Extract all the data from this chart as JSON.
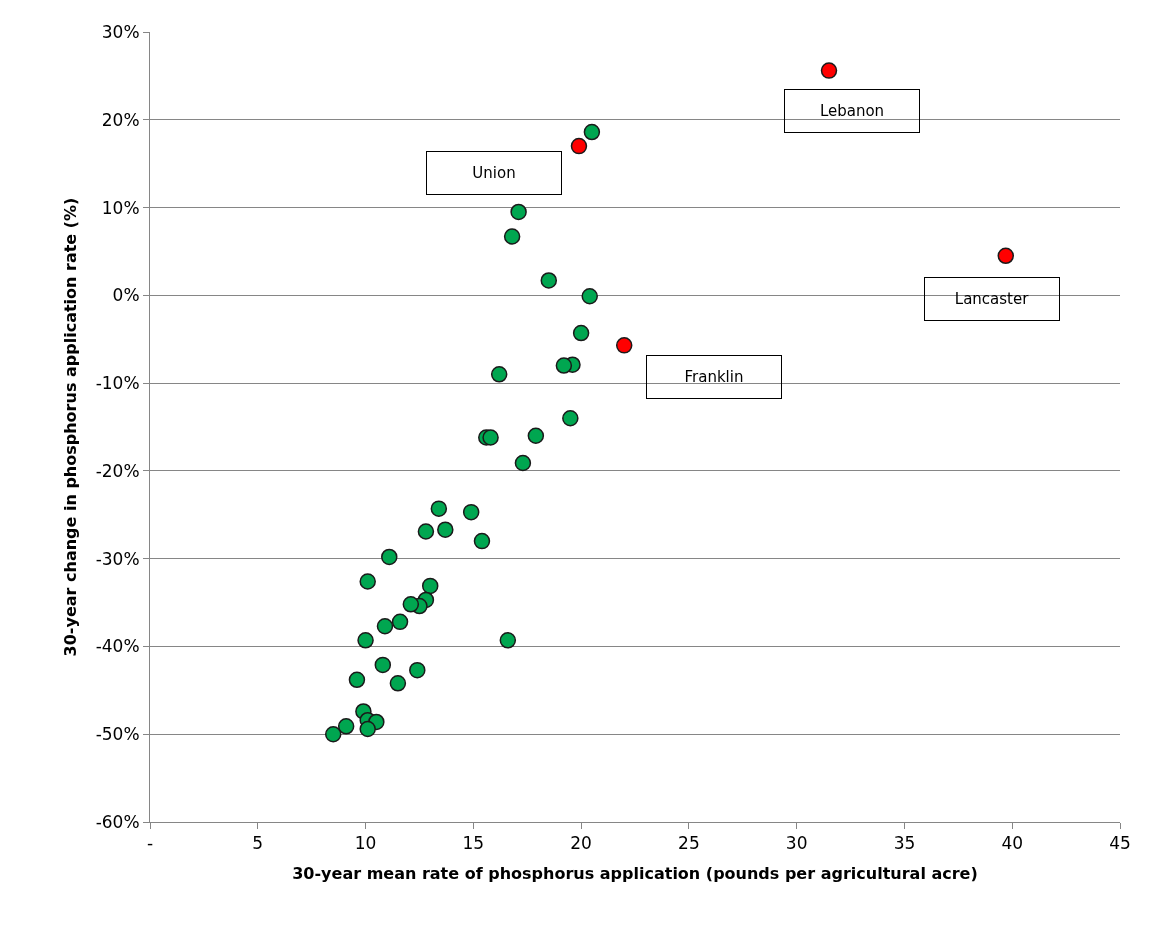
{
  "chart_data": {
    "type": "scatter",
    "xlabel": "30-year mean rate of phosphorus application (pounds per agricultural acre)",
    "ylabel": "30-year change in phosphorus application rate (%)",
    "xlim": [
      0,
      45
    ],
    "xticks": [
      {
        "value": 0,
        "label": "-"
      },
      5,
      10,
      15,
      20,
      25,
      30,
      35,
      40,
      45
    ],
    "ylim": [
      -60,
      30
    ],
    "yticks": [
      {
        "value": -60,
        "label": "-60%"
      },
      {
        "value": -50,
        "label": "-50%"
      },
      {
        "value": -40,
        "label": "-40%"
      },
      {
        "value": -30,
        "label": "-30%"
      },
      {
        "value": -20,
        "label": "-20%"
      },
      {
        "value": -10,
        "label": "-10%"
      },
      {
        "value": 0,
        "label": "0%"
      },
      {
        "value": 10,
        "label": "10%"
      },
      {
        "value": 20,
        "label": "20%"
      },
      {
        "value": 30,
        "label": "30%"
      }
    ],
    "grid": "y",
    "marker": "circle",
    "series": [
      {
        "color": "#00a650",
        "x": [
          20.5,
          17.1,
          16.8,
          18.5,
          20.4,
          20.0,
          19.6,
          19.2,
          16.2,
          19.5,
          17.9,
          15.6,
          15.8,
          17.3,
          13.4,
          14.9,
          13.7,
          12.8,
          15.4,
          11.1,
          10.1,
          13.0,
          12.8,
          12.5,
          12.1,
          10.9,
          11.6,
          10.0,
          16.6,
          10.8,
          12.4,
          9.6,
          11.5,
          9.9,
          10.1,
          10.5,
          10.1,
          9.1,
          8.5
        ],
        "values": [
          18.6,
          9.5,
          6.7,
          1.7,
          -0.1,
          -4.3,
          -7.9,
          -8.0,
          -9.0,
          -14.0,
          -16.0,
          -16.2,
          -16.2,
          -19.1,
          -24.3,
          -24.7,
          -26.7,
          -26.9,
          -28.0,
          -29.8,
          -32.6,
          -33.1,
          -34.7,
          -35.4,
          -35.2,
          -37.7,
          -37.2,
          -39.3,
          -39.3,
          -42.1,
          -42.7,
          -43.8,
          -44.2,
          -47.4,
          -48.4,
          -48.6,
          -49.4,
          -49.1,
          -50.0
        ]
      },
      {
        "color": "#ff0000",
        "x": [
          31.5,
          19.9,
          39.7,
          22.0
        ],
        "values": [
          25.6,
          17.0,
          4.5,
          -5.7
        ]
      }
    ],
    "annotations": [
      "Lebanon",
      "Union",
      "Lancaster",
      "Franklin"
    ]
  }
}
